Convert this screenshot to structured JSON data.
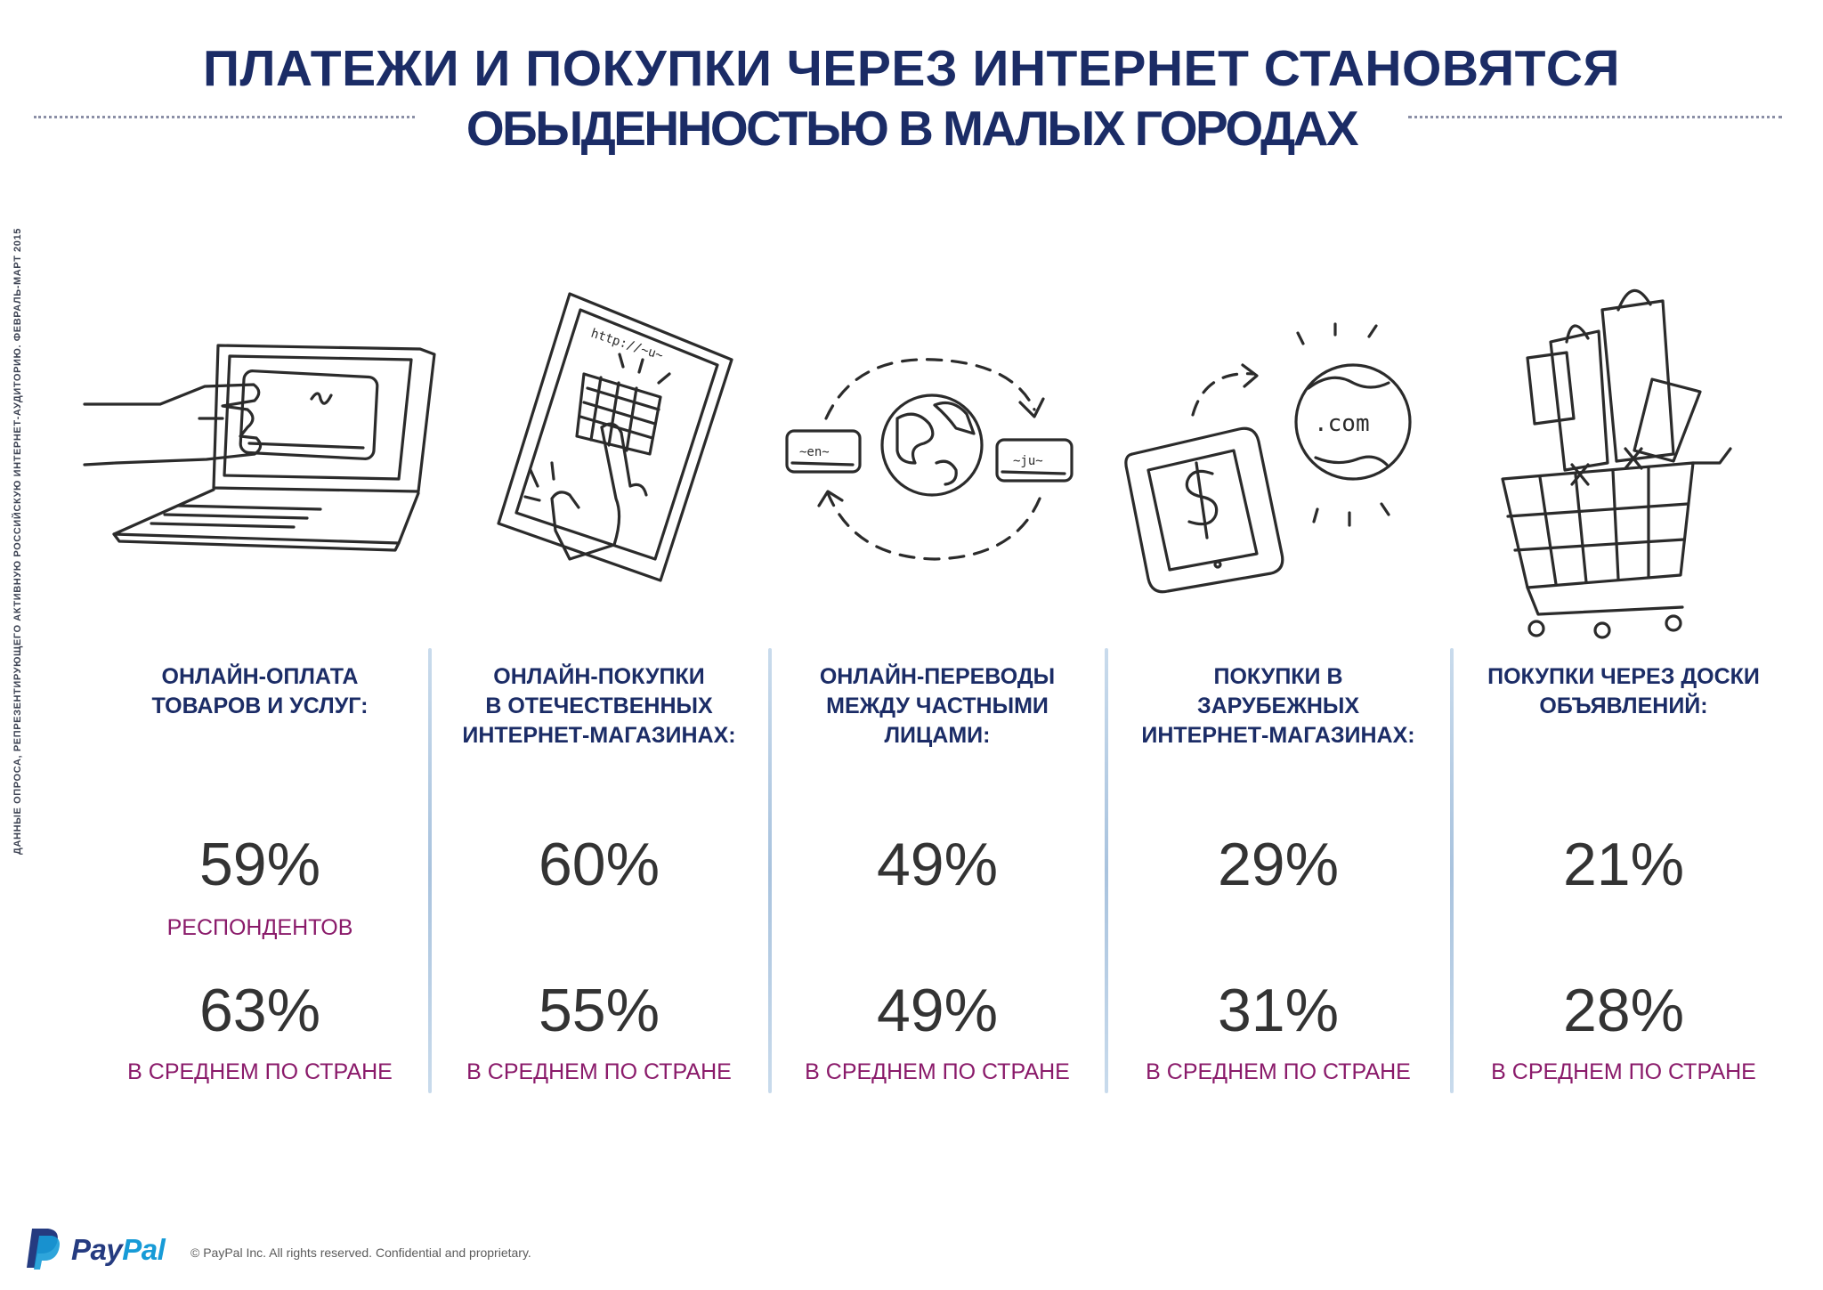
{
  "title": {
    "line1": "ПЛАТЕЖИ И ПОКУПКИ ЧЕРЕЗ ИНТЕРНЕТ СТАНОВЯТСЯ",
    "line2": "ОБЫДЕННОСТЬЮ В МАЛЫХ ГОРОДАХ"
  },
  "side_note": "ДАННЫЕ ОПРОСА, РЕПРЕЗЕНТИРУЮЩЕГО АКТИВНУЮ РОССИЙСКУЮ ИНТЕРНЕТ-АУДИТОРИЮ. ФЕВРАЛЬ-МАРТ 2015",
  "illustrations": {
    "tablet_url": "http://~u~",
    "card1_text": "~en~",
    "card2_text": "~ju~",
    "globe_text": ".com"
  },
  "columns": [
    {
      "heading": "ОНЛАЙН-ОПЛАТА\nТОВАРОВ И УСЛУГ:",
      "value": "59%",
      "value_label": "РЕСПОНДЕНТОВ",
      "avg": "63%",
      "avg_label": "В СРЕДНЕМ ПО СТРАНЕ"
    },
    {
      "heading": "ОНЛАЙН-ПОКУПКИ\nВ ОТЕЧЕСТВЕННЫХ\nИНТЕРНЕТ-МАГАЗИНАХ:",
      "value": "60%",
      "value_label": "",
      "avg": "55%",
      "avg_label": "В СРЕДНЕМ ПО СТРАНЕ"
    },
    {
      "heading": "ОНЛАЙН-ПЕРЕВОДЫ\nМЕЖДУ ЧАСТНЫМИ\nЛИЦАМИ:",
      "value": "49%",
      "value_label": "",
      "avg": "49%",
      "avg_label": "В СРЕДНЕМ ПО СТРАНЕ"
    },
    {
      "heading": "ПОКУПКИ В\nЗАРУБЕЖНЫХ\nИНТЕРНЕТ-МАГАЗИНАХ:",
      "value": "29%",
      "value_label": "",
      "avg": "31%",
      "avg_label": "В СРЕДНЕМ ПО СТРАНЕ"
    },
    {
      "heading": "ПОКУПКИ ЧЕРЕЗ ДОСКИ\nОБЪЯВЛЕНИЙ:",
      "value": "21%",
      "value_label": "",
      "avg": "28%",
      "avg_label": "В СРЕДНЕМ ПО СТРАНЕ"
    }
  ],
  "footer": {
    "brand_part1": "Pay",
    "brand_part2": "Pal",
    "copyright": "© PayPal Inc. All rights reserved. Confidential and proprietary."
  },
  "colors": {
    "title": "#1b2c66",
    "label_magenta": "#8a1a6a",
    "value_gray": "#333333",
    "divider": "#a9c3de",
    "paypal_dark": "#253b80",
    "paypal_light": "#179bd7"
  }
}
